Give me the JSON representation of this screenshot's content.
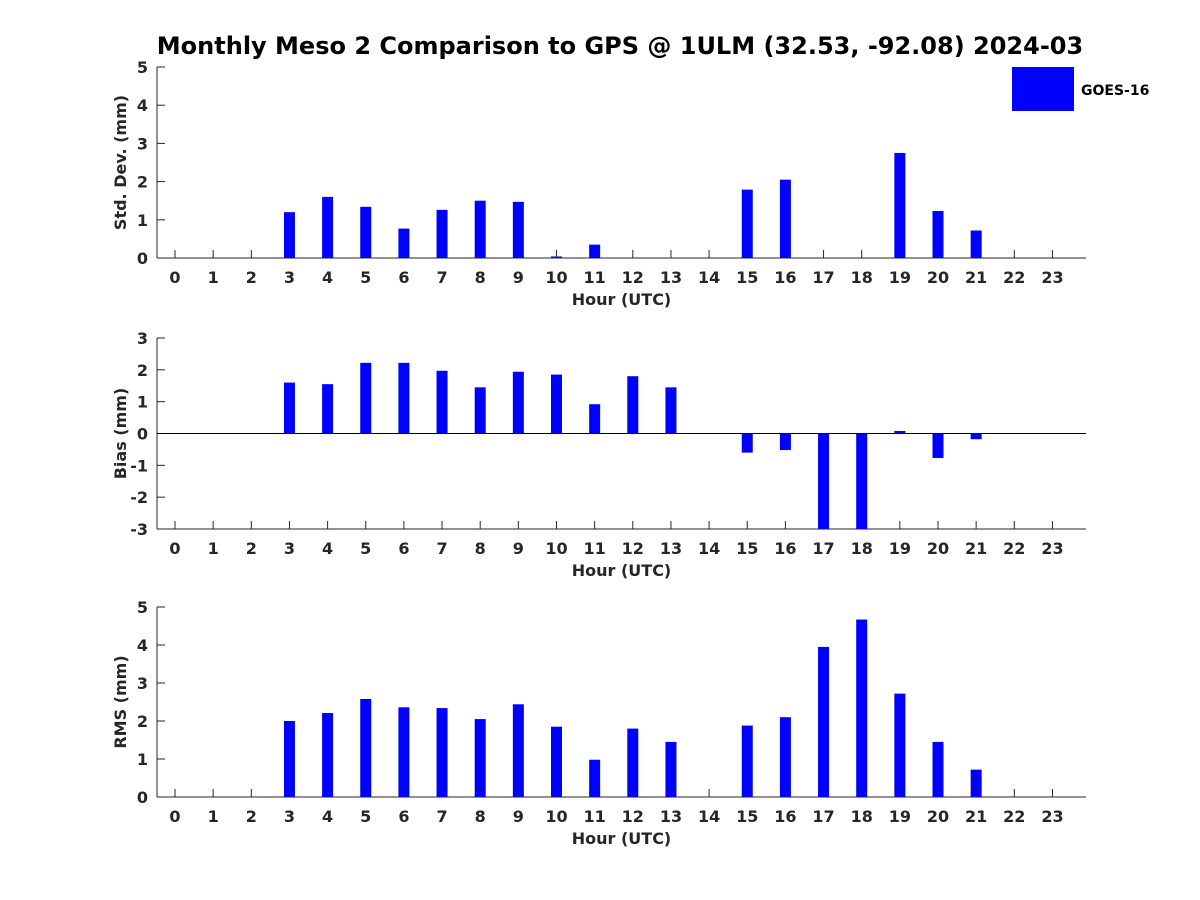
{
  "title": "Monthly Meso 2 Comparison to GPS @ 1ULM (32.53, -92.08) 2024-03",
  "legend": {
    "label": "GOES-16",
    "color": "#0000ff",
    "position": "top-right"
  },
  "bar_color": "#0000ff",
  "chart_data": [
    {
      "type": "bar",
      "ylabel": "Std. Dev. (mm)",
      "xlabel": "Hour (UTC)",
      "ylim": [
        0,
        5
      ],
      "yticks": [
        0,
        1,
        2,
        3,
        4,
        5
      ],
      "categories": [
        0,
        1,
        2,
        3,
        4,
        5,
        6,
        7,
        8,
        9,
        10,
        11,
        12,
        13,
        14,
        15,
        16,
        17,
        18,
        19,
        20,
        21,
        22,
        23
      ],
      "series": [
        {
          "name": "GOES-16",
          "values": [
            null,
            null,
            null,
            1.2,
            1.6,
            1.34,
            0.77,
            1.26,
            1.5,
            1.47,
            0.04,
            0.35,
            null,
            null,
            null,
            1.79,
            2.05,
            null,
            null,
            2.75,
            1.23,
            0.72,
            null,
            null
          ]
        }
      ]
    },
    {
      "type": "bar",
      "ylabel": "Bias (mm)",
      "xlabel": "Hour (UTC)",
      "ylim": [
        -3,
        3
      ],
      "yticks": [
        -3,
        -2,
        -1,
        0,
        1,
        2,
        3
      ],
      "categories": [
        0,
        1,
        2,
        3,
        4,
        5,
        6,
        7,
        8,
        9,
        10,
        11,
        12,
        13,
        14,
        15,
        16,
        17,
        18,
        19,
        20,
        21,
        22,
        23
      ],
      "series": [
        {
          "name": "GOES-16",
          "values": [
            null,
            null,
            null,
            1.6,
            1.55,
            2.22,
            2.22,
            1.97,
            1.45,
            1.94,
            1.85,
            0.92,
            1.8,
            1.45,
            null,
            -0.6,
            -0.52,
            -3.0,
            -3.0,
            0.08,
            -0.77,
            -0.18,
            null,
            null
          ]
        }
      ]
    },
    {
      "type": "bar",
      "ylabel": "RMS (mm)",
      "xlabel": "Hour (UTC)",
      "ylim": [
        0,
        5
      ],
      "yticks": [
        0,
        1,
        2,
        3,
        4,
        5
      ],
      "categories": [
        0,
        1,
        2,
        3,
        4,
        5,
        6,
        7,
        8,
        9,
        10,
        11,
        12,
        13,
        14,
        15,
        16,
        17,
        18,
        19,
        20,
        21,
        22,
        23
      ],
      "series": [
        {
          "name": "GOES-16",
          "values": [
            null,
            null,
            null,
            2.0,
            2.21,
            2.58,
            2.36,
            2.34,
            2.05,
            2.44,
            1.85,
            0.98,
            1.8,
            1.45,
            null,
            1.88,
            2.1,
            3.95,
            4.67,
            2.72,
            1.45,
            0.72,
            null,
            null
          ]
        }
      ]
    }
  ]
}
